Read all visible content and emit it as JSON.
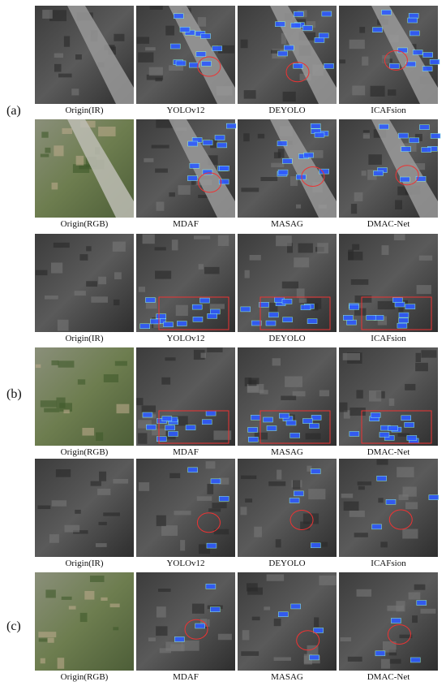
{
  "groups": [
    {
      "label": "(a)",
      "rows": [
        [
          "Origin(IR)",
          "YOLOv12",
          "DEYOLO",
          "ICAFsion"
        ],
        [
          "Origin(RGB)",
          "MDAF",
          "MASAG",
          "DMAC-Net"
        ]
      ]
    },
    {
      "label": "(b)",
      "rows": [
        [
          "Origin(IR)",
          "YOLOv12",
          "DEYOLO",
          "ICAFsion"
        ],
        [
          "Origin(RGB)",
          "MDAF",
          "MASAG",
          "DMAC-Net"
        ]
      ]
    },
    {
      "label": "(c)",
      "rows": [
        [
          "Origin(IR)",
          "YOLOv12",
          "DEYOLO",
          "ICAFsion"
        ],
        [
          "Origin(RGB)",
          "MDAF",
          "MASAG",
          "DMAC-Net"
        ]
      ]
    }
  ]
}
